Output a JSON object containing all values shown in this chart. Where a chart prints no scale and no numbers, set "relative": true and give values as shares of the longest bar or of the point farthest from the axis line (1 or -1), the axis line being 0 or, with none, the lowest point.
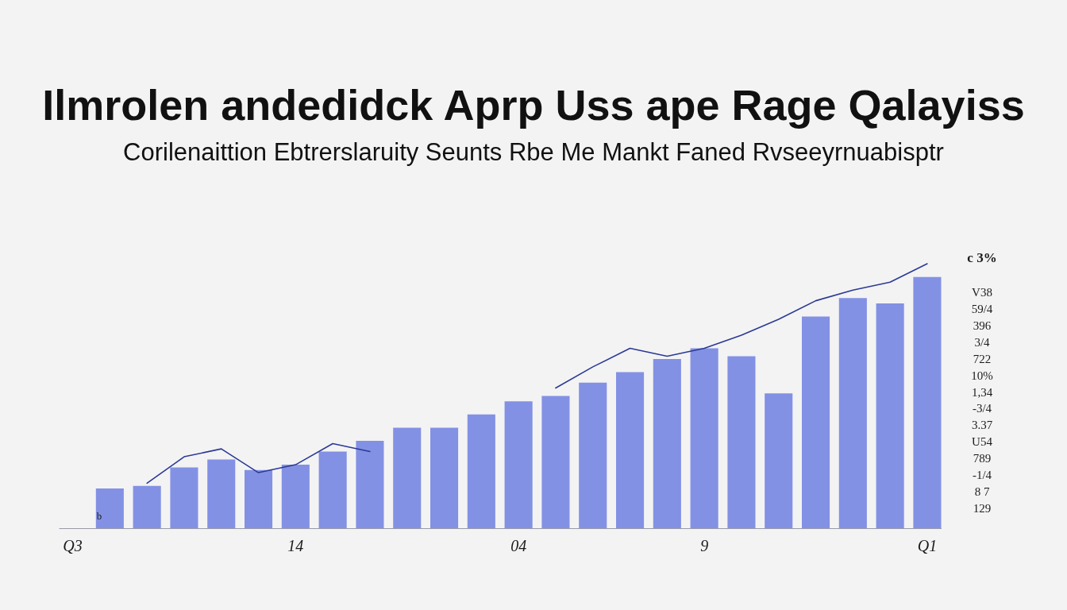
{
  "chart_data": {
    "type": "bar",
    "relative": true,
    "title": "Ilmrolen andedidck Aprp Uss ape Rage Qalayiss",
    "subtitle": "Corilenaittion Ebtrerslaruity Seunts Rbe Me Mankt Faned Rvseeyrnuabisptr",
    "annotations": [
      "b",
      "c 3%",
      "V38",
      "59/4",
      "396",
      "3/4",
      "722",
      "10%",
      "1,34",
      "-3/4",
      "3.37",
      "U54",
      "789",
      "-1/4",
      "8 7",
      "129"
    ],
    "categories": [
      "Q3",
      null,
      null,
      null,
      null,
      null,
      "14",
      null,
      null,
      null,
      null,
      null,
      "04",
      null,
      null,
      null,
      null,
      "9",
      null,
      null,
      null,
      null,
      null,
      "Q1"
    ],
    "series": [
      {
        "color": "#7c8be3",
        "values": [
          null,
          0.15,
          0.16,
          0.23,
          0.26,
          0.22,
          0.24,
          0.29,
          0.33,
          0.38,
          0.38,
          0.43,
          0.48,
          0.5,
          0.55,
          0.59,
          0.64,
          0.68,
          0.65,
          0.51,
          0.8,
          0.87,
          0.85,
          0.95
        ]
      },
      {
        "type": "line",
        "color": "#2b3a94",
        "values": [
          null,
          null,
          0.17,
          0.27,
          0.3,
          0.21,
          0.24,
          0.32,
          0.29,
          null,
          null,
          null,
          null,
          0.53,
          0.61,
          0.68,
          0.65,
          0.68,
          0.73,
          0.79,
          0.86,
          0.9,
          0.93,
          1
        ]
      }
    ]
  }
}
